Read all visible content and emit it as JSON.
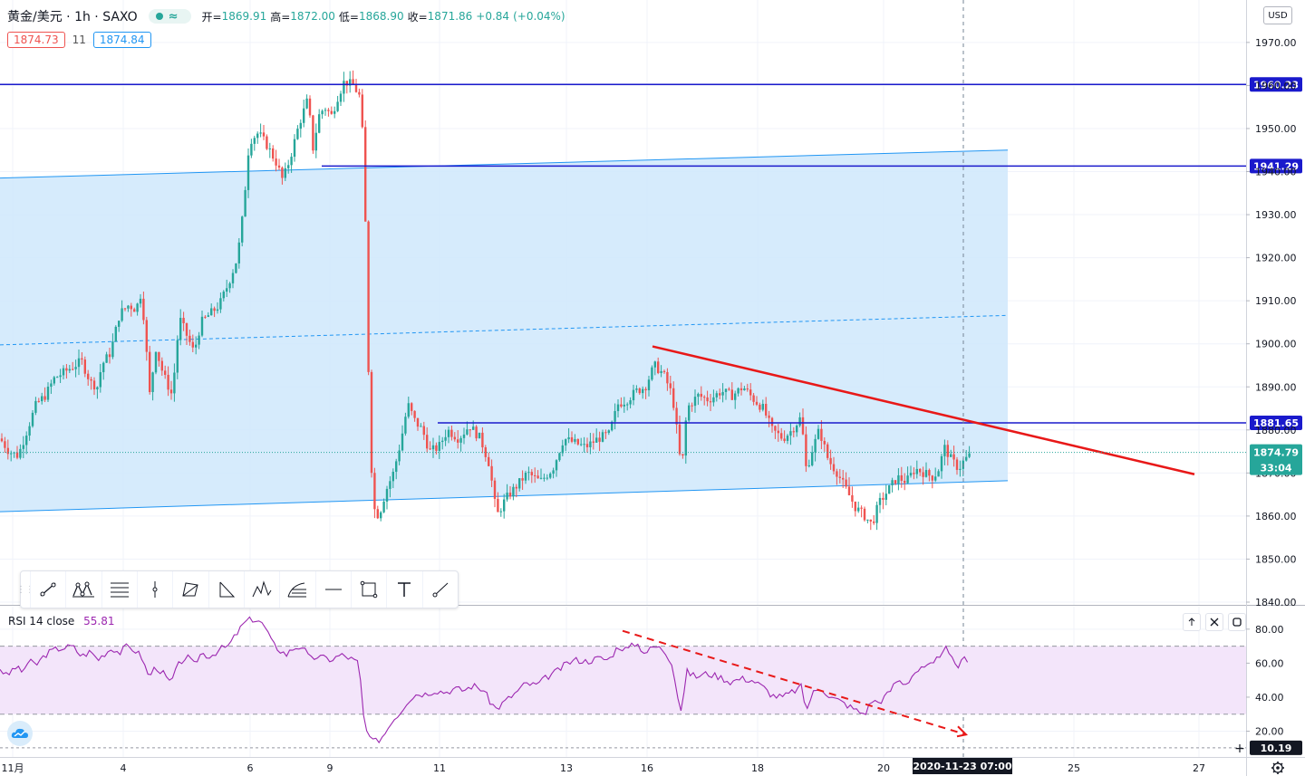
{
  "header": {
    "symbol": "黄金/美元 · 1h · SAXO",
    "open_label": "开=",
    "open": "1869.91",
    "high_label": "高=",
    "high": "1872.00",
    "low_label": "低=",
    "low": "1868.90",
    "close_label": "收=",
    "close": "1871.86",
    "change": "+0.84",
    "change_pct": "(+0.04%)",
    "bid": "1874.73",
    "spread": "11",
    "ask": "1874.84",
    "currency": "USD"
  },
  "colors": {
    "up": "#26a69a",
    "down": "#ef5350",
    "channel_fill": "#cfe8fb",
    "channel_line": "#2196f3",
    "horizontal_line": "#1a1acc",
    "trendline": "#e81818",
    "rsi_line": "#9c27b0",
    "rsi_band": "#f3e5fa"
  },
  "icons": {
    "drawing_toolbar": [
      "trend-line-icon",
      "pattern-icon",
      "fib-retracement-icon",
      "vertical-line-icon",
      "polygon-icon",
      "triangle-pattern-icon",
      "head-shoulders-icon",
      "fib-extension-icon",
      "horizontal-ray-icon",
      "rectangle-icon",
      "text-icon",
      "ray-icon"
    ],
    "pane_buttons": [
      "arrow-up-icon",
      "close-icon",
      "maximize-icon"
    ],
    "settings": "gear-icon",
    "logo": "tradingview-cloud-icon"
  },
  "chart_data": [
    {
      "type": "candlestick",
      "title": "黄金/美元 · 1h · SAXO",
      "ylim": [
        1840,
        1975
      ],
      "yticks": [
        "1970.00",
        "1960.00",
        "1950.00",
        "1940.00",
        "1930.00",
        "1920.00",
        "1910.00",
        "1900.00",
        "1890.00",
        "1880.00",
        "1870.00",
        "1860.00",
        "1850.00",
        "1840.00"
      ],
      "xticks": [
        "11月",
        "4",
        "6",
        "9",
        "11",
        "13",
        "16",
        "18",
        "20",
        "2020-11-23  07:00",
        "25",
        "27"
      ],
      "path": [
        [
          0,
          1878
        ],
        [
          10,
          1875
        ],
        [
          20,
          1874
        ],
        [
          30,
          1880
        ],
        [
          40,
          1886
        ],
        [
          50,
          1888
        ],
        [
          60,
          1892
        ],
        [
          75,
          1894
        ],
        [
          90,
          1896
        ],
        [
          100,
          1891
        ],
        [
          108,
          1890
        ],
        [
          112,
          1895
        ],
        [
          122,
          1898
        ],
        [
          132,
          1907
        ],
        [
          142,
          1909
        ],
        [
          150,
          1908
        ],
        [
          156,
          1912
        ],
        [
          160,
          1903
        ],
        [
          165,
          1888
        ],
        [
          172,
          1899
        ],
        [
          180,
          1893
        ],
        [
          190,
          1888
        ],
        [
          198,
          1906
        ],
        [
          206,
          1902
        ],
        [
          214,
          1898
        ],
        [
          222,
          1905
        ],
        [
          232,
          1907
        ],
        [
          242,
          1909
        ],
        [
          252,
          1914
        ],
        [
          262,
          1920
        ],
        [
          268,
          1930
        ],
        [
          275,
          1947
        ],
        [
          285,
          1949
        ],
        [
          295,
          1946
        ],
        [
          305,
          1942
        ],
        [
          312,
          1938
        ],
        [
          320,
          1943
        ],
        [
          330,
          1951
        ],
        [
          340,
          1957
        ],
        [
          345,
          1945
        ],
        [
          352,
          1953
        ],
        [
          358,
          1955
        ],
        [
          366,
          1953
        ],
        [
          372,
          1957
        ],
        [
          380,
          1961
        ],
        [
          390,
          1960
        ],
        [
          398,
          1957
        ],
        [
          402,
          1940
        ],
        [
          405,
          1910
        ],
        [
          408,
          1880
        ],
        [
          412,
          1862
        ],
        [
          418,
          1860
        ],
        [
          426,
          1866
        ],
        [
          434,
          1870
        ],
        [
          442,
          1877
        ],
        [
          450,
          1886
        ],
        [
          458,
          1882
        ],
        [
          466,
          1880
        ],
        [
          474,
          1875
        ],
        [
          484,
          1876
        ],
        [
          494,
          1880
        ],
        [
          506,
          1878
        ],
        [
          518,
          1881
        ],
        [
          530,
          1878
        ],
        [
          540,
          1872
        ],
        [
          548,
          1860
        ],
        [
          558,
          1864
        ],
        [
          570,
          1867
        ],
        [
          582,
          1870
        ],
        [
          596,
          1868
        ],
        [
          610,
          1871
        ],
        [
          622,
          1878
        ],
        [
          634,
          1877
        ],
        [
          646,
          1876
        ],
        [
          660,
          1878
        ],
        [
          672,
          1879
        ],
        [
          682,
          1886
        ],
        [
          692,
          1887
        ],
        [
          702,
          1889
        ],
        [
          712,
          1890
        ],
        [
          722,
          1895
        ],
        [
          732,
          1893
        ],
        [
          742,
          1888
        ],
        [
          748,
          1878
        ],
        [
          752,
          1870
        ],
        [
          758,
          1885
        ],
        [
          770,
          1888
        ],
        [
          782,
          1887
        ],
        [
          796,
          1889
        ],
        [
          808,
          1888
        ],
        [
          820,
          1890
        ],
        [
          832,
          1887
        ],
        [
          842,
          1885
        ],
        [
          852,
          1880
        ],
        [
          864,
          1878
        ],
        [
          874,
          1880
        ],
        [
          884,
          1883
        ],
        [
          890,
          1870
        ],
        [
          894,
          1874
        ],
        [
          904,
          1880
        ],
        [
          914,
          1873
        ],
        [
          924,
          1870
        ],
        [
          934,
          1866
        ],
        [
          944,
          1862
        ],
        [
          954,
          1860
        ],
        [
          962,
          1858
        ],
        [
          970,
          1863
        ],
        [
          980,
          1866
        ],
        [
          990,
          1869
        ],
        [
          1000,
          1868
        ],
        [
          1010,
          1871
        ],
        [
          1020,
          1870
        ],
        [
          1030,
          1869
        ],
        [
          1036,
          1871
        ],
        [
          1042,
          1876
        ],
        [
          1050,
          1873
        ],
        [
          1058,
          1871
        ],
        [
          1064,
          1873
        ],
        [
          1070,
          1874
        ]
      ],
      "last_price": "1874.79",
      "countdown": "33:04",
      "annotations": {
        "horizontal_lines": [
          {
            "price": 1960.23,
            "label": "1960.23",
            "from_x": 0
          },
          {
            "price": 1941.29,
            "label": "1941.29",
            "from_x": 355
          },
          {
            "price": 1881.65,
            "label": "1881.65",
            "from_x": 483
          }
        ],
        "channel": {
          "x0": 0,
          "x1": 1112,
          "upper": [
            1938.5,
            1945
          ],
          "lower": [
            1861,
            1868.2
          ]
        },
        "trendline": {
          "p0": [
            720,
            1899.4
          ],
          "p1": [
            1318,
            1869.7
          ]
        },
        "crosshair_x": 1063
      }
    },
    {
      "type": "line",
      "title": "RSI 14 close",
      "value": "55.81",
      "ylim": [
        8,
        88
      ],
      "yticks": [
        "80.00",
        "60.00",
        "40.00",
        "20.00"
      ],
      "bands": [
        30,
        70
      ],
      "current_label": "10.19",
      "path": [
        [
          0,
          57
        ],
        [
          8,
          52
        ],
        [
          16,
          58
        ],
        [
          24,
          55
        ],
        [
          32,
          61
        ],
        [
          40,
          59
        ],
        [
          50,
          65
        ],
        [
          60,
          68
        ],
        [
          70,
          69
        ],
        [
          80,
          70
        ],
        [
          90,
          64
        ],
        [
          100,
          67
        ],
        [
          108,
          62
        ],
        [
          116,
          66
        ],
        [
          124,
          69
        ],
        [
          132,
          66
        ],
        [
          140,
          70
        ],
        [
          148,
          68
        ],
        [
          156,
          64
        ],
        [
          164,
          52
        ],
        [
          172,
          58
        ],
        [
          180,
          54
        ],
        [
          188,
          48
        ],
        [
          198,
          60
        ],
        [
          206,
          64
        ],
        [
          214,
          59
        ],
        [
          222,
          66
        ],
        [
          232,
          64
        ],
        [
          242,
          68
        ],
        [
          252,
          70
        ],
        [
          262,
          78
        ],
        [
          270,
          84
        ],
        [
          278,
          86
        ],
        [
          286,
          85
        ],
        [
          294,
          80
        ],
        [
          300,
          72
        ],
        [
          308,
          68
        ],
        [
          316,
          65
        ],
        [
          324,
          69
        ],
        [
          334,
          70
        ],
        [
          342,
          62
        ],
        [
          350,
          64
        ],
        [
          358,
          63
        ],
        [
          366,
          62
        ],
        [
          376,
          65
        ],
        [
          386,
          63
        ],
        [
          396,
          60
        ],
        [
          402,
          24
        ],
        [
          408,
          15
        ],
        [
          416,
          14
        ],
        [
          424,
          18
        ],
        [
          432,
          26
        ],
        [
          440,
          30
        ],
        [
          450,
          38
        ],
        [
          460,
          42
        ],
        [
          470,
          42
        ],
        [
          480,
          44
        ],
        [
          492,
          43
        ],
        [
          502,
          45
        ],
        [
          512,
          44
        ],
        [
          522,
          47
        ],
        [
          534,
          44
        ],
        [
          540,
          38
        ],
        [
          548,
          33
        ],
        [
          558,
          38
        ],
        [
          568,
          42
        ],
        [
          580,
          48
        ],
        [
          592,
          47
        ],
        [
          604,
          52
        ],
        [
          614,
          55
        ],
        [
          626,
          60
        ],
        [
          636,
          62
        ],
        [
          648,
          61
        ],
        [
          660,
          63
        ],
        [
          672,
          62
        ],
        [
          682,
          70
        ],
        [
          692,
          68
        ],
        [
          702,
          72
        ],
        [
          712,
          66
        ],
        [
          722,
          70
        ],
        [
          732,
          68
        ],
        [
          742,
          60
        ],
        [
          748,
          40
        ],
        [
          752,
          32
        ],
        [
          758,
          55
        ],
        [
          768,
          52
        ],
        [
          780,
          54
        ],
        [
          794,
          52
        ],
        [
          806,
          49
        ],
        [
          818,
          51
        ],
        [
          830,
          50
        ],
        [
          842,
          46
        ],
        [
          852,
          41
        ],
        [
          864,
          40
        ],
        [
          874,
          43
        ],
        [
          884,
          46
        ],
        [
          890,
          32
        ],
        [
          896,
          42
        ],
        [
          906,
          46
        ],
        [
          916,
          40
        ],
        [
          926,
          38
        ],
        [
          936,
          35
        ],
        [
          946,
          32
        ],
        [
          954,
          30
        ],
        [
          962,
          38
        ],
        [
          970,
          37
        ],
        [
          980,
          42
        ],
        [
          990,
          50
        ],
        [
          1000,
          48
        ],
        [
          1010,
          55
        ],
        [
          1020,
          57
        ],
        [
          1030,
          59
        ],
        [
          1036,
          64
        ],
        [
          1042,
          70
        ],
        [
          1050,
          62
        ],
        [
          1058,
          58
        ],
        [
          1064,
          63
        ],
        [
          1070,
          62
        ]
      ],
      "divergence_line": {
        "p0": [
          687,
          79
        ],
        "p1": [
          1066,
          18
        ]
      }
    }
  ]
}
